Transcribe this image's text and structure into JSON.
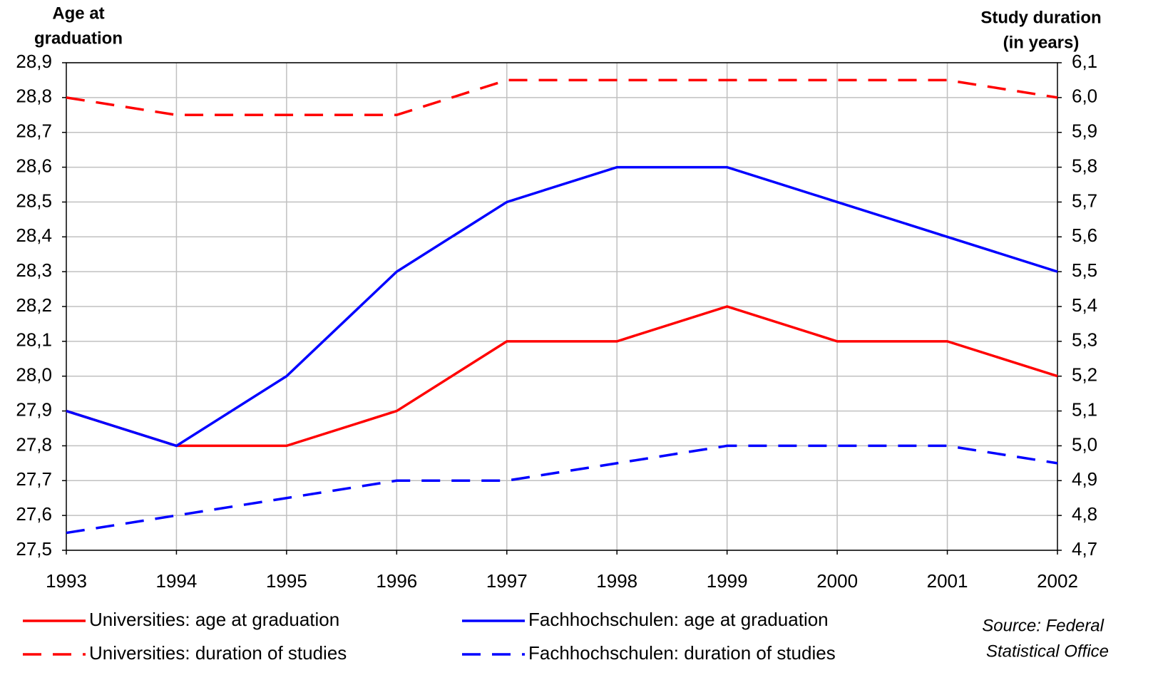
{
  "chart_data": {
    "type": "line",
    "ylabel": [
      "Age at",
      "graduation"
    ],
    "y2label": [
      "Study duration",
      "(in years)"
    ],
    "source": [
      "Source: Federal",
      "Statistical Office"
    ],
    "categories": [
      "1993",
      "1994",
      "1995",
      "1996",
      "1997",
      "1998",
      "1999",
      "2000",
      "2001",
      "2002"
    ],
    "grid": true,
    "ylim": [
      27.5,
      28.9
    ],
    "yticks": [
      {
        "value": 27.5,
        "label": "27,5"
      },
      {
        "value": 27.6,
        "label": "27,6"
      },
      {
        "value": 27.7,
        "label": "27,7"
      },
      {
        "value": 27.8,
        "label": "27,8"
      },
      {
        "value": 27.9,
        "label": "27,9"
      },
      {
        "value": 28.0,
        "label": "28,0"
      },
      {
        "value": 28.1,
        "label": "28,1"
      },
      {
        "value": 28.2,
        "label": "28,2"
      },
      {
        "value": 28.3,
        "label": "28,3"
      },
      {
        "value": 28.4,
        "label": "28,4"
      },
      {
        "value": 28.5,
        "label": "28,5"
      },
      {
        "value": 28.6,
        "label": "28,6"
      },
      {
        "value": 28.7,
        "label": "28,7"
      },
      {
        "value": 28.8,
        "label": "28,8"
      },
      {
        "value": 28.9,
        "label": "28,9"
      }
    ],
    "y2lim": [
      4.7,
      6.1
    ],
    "y2ticks": [
      {
        "value": 4.7,
        "label": "4,7"
      },
      {
        "value": 4.8,
        "label": "4,8"
      },
      {
        "value": 4.9,
        "label": "4,9"
      },
      {
        "value": 5.0,
        "label": "5,0"
      },
      {
        "value": 5.1,
        "label": "5,1"
      },
      {
        "value": 5.2,
        "label": "5,2"
      },
      {
        "value": 5.3,
        "label": "5,3"
      },
      {
        "value": 5.4,
        "label": "5,4"
      },
      {
        "value": 5.5,
        "label": "5,5"
      },
      {
        "value": 5.6,
        "label": "5,6"
      },
      {
        "value": 5.7,
        "label": "5,7"
      },
      {
        "value": 5.8,
        "label": "5,8"
      },
      {
        "value": 5.9,
        "label": "5,9"
      },
      {
        "value": 6.0,
        "label": "6,0"
      },
      {
        "value": 6.1,
        "label": "6,1"
      }
    ],
    "series": [
      {
        "name": "Universities: age at graduation",
        "color": "#ff0000",
        "dashed": false,
        "values": [
          27.9,
          27.8,
          27.8,
          27.9,
          28.1,
          28.1,
          28.2,
          28.1,
          28.1,
          28.0
        ]
      },
      {
        "name": "Universities: duration of studies",
        "color": "#ff0000",
        "dashed": true,
        "axis": "y2",
        "values": [
          6.0,
          5.95,
          5.95,
          5.95,
          6.05,
          6.05,
          6.05,
          6.05,
          6.05,
          6.0
        ]
      },
      {
        "name": "Fachhochschulen: age at graduation",
        "color": "#0000ff",
        "dashed": false,
        "values": [
          27.9,
          27.8,
          28.0,
          28.3,
          28.5,
          28.6,
          28.6,
          28.5,
          28.4,
          28.3
        ]
      },
      {
        "name": "Fachhochschulen: duration of studies",
        "color": "#0000ff",
        "dashed": true,
        "axis": "y2",
        "values": [
          4.75,
          4.8,
          4.85,
          4.9,
          4.9,
          4.95,
          5.0,
          5.0,
          5.0,
          4.95
        ]
      }
    ]
  }
}
